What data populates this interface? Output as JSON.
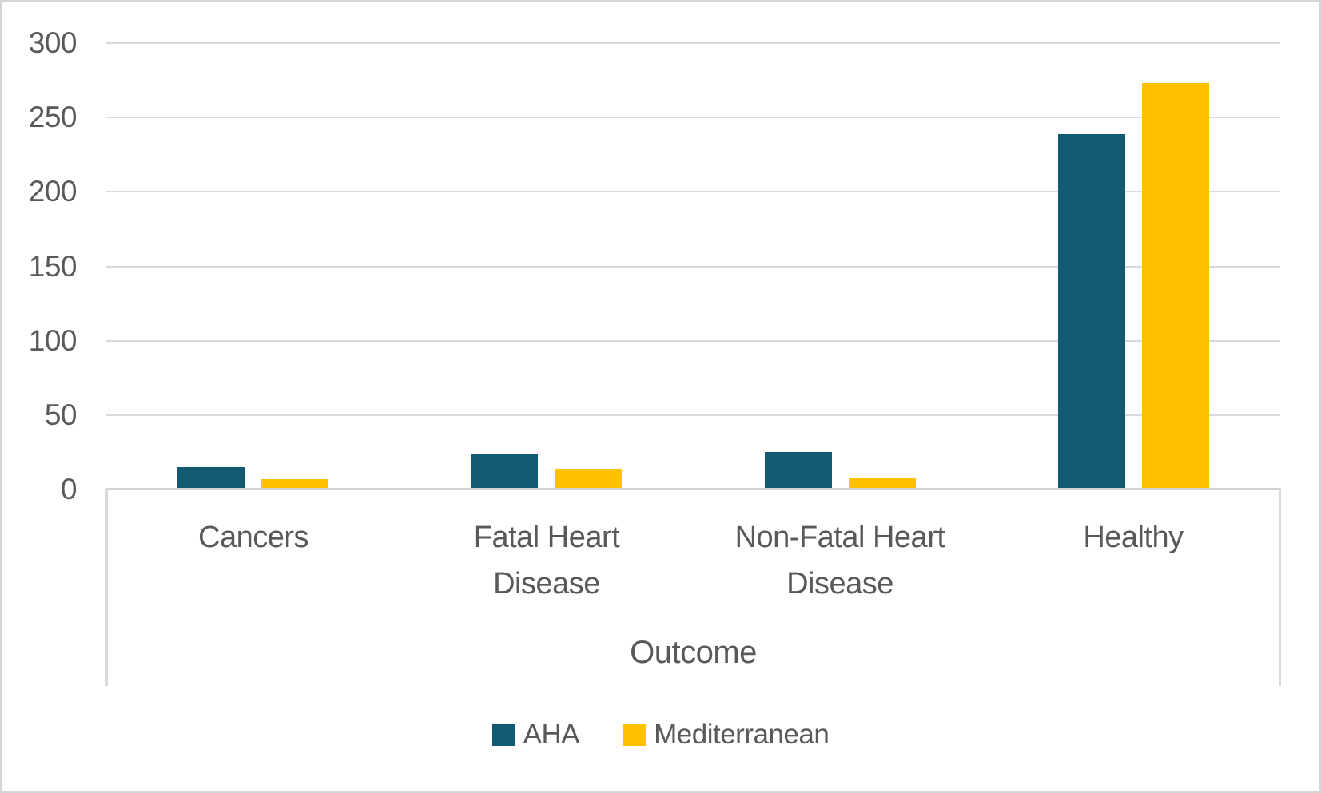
{
  "chart_data": {
    "type": "bar",
    "title": "",
    "categories": [
      "Cancers",
      "Fatal Heart Disease",
      "Non-Fatal Heart Disease",
      "Healthy"
    ],
    "series": [
      {
        "name": "AHA",
        "color": "#145972",
        "values": [
          15,
          24,
          25,
          239
        ]
      },
      {
        "name": "Mediterranean",
        "color": "#FFC000",
        "values": [
          7,
          14,
          8,
          273
        ]
      }
    ],
    "xlabel": "Outcome",
    "ylabel": "",
    "ylim": [
      0,
      300
    ],
    "yticks": [
      0,
      50,
      100,
      150,
      200,
      250,
      300
    ],
    "ytick_labels": [
      "0",
      "50",
      "100",
      "150",
      "200",
      "250",
      "300"
    ],
    "grid": true,
    "legend_position": "bottom",
    "bar_gap_in_pair": 21,
    "plot_background": "#ffffff"
  },
  "colors": {
    "aha_bar": "#145972",
    "mediterranean_bar": "#FFC000",
    "axis_text": "#595959",
    "gridline": "#dadada",
    "frame_border": "#d5d5d5"
  },
  "legend": {
    "items": [
      {
        "label": "AHA",
        "color": "#145972"
      },
      {
        "label": "Mediterranean",
        "color": "#FFC000"
      }
    ]
  }
}
